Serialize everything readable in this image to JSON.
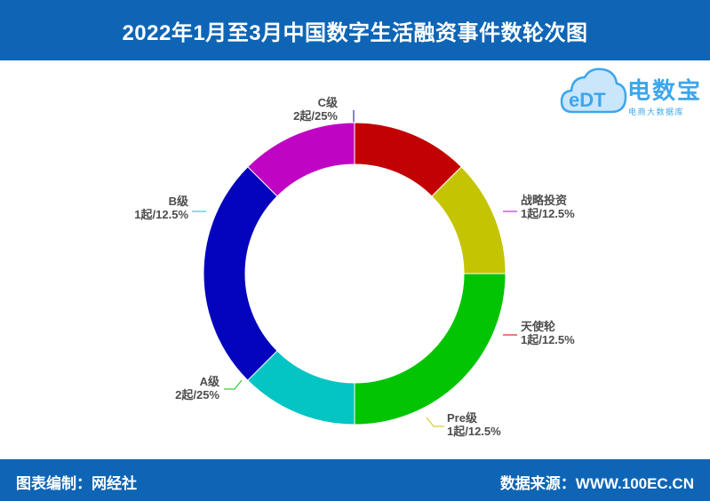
{
  "header": {
    "title": "2022年1月至3月中国数字生活融资事件数轮次图"
  },
  "footer": {
    "left": "图表编制：网经社",
    "right": "数据来源：WWW.100EC.CN"
  },
  "logo": {
    "mark": "eDT",
    "brand": "电数宝",
    "tagline": "电商大数据库",
    "color": "#3ca6ec"
  },
  "chart_data": {
    "type": "pie",
    "variant": "donut",
    "title": "2022年1月至3月中国数字生活融资事件数轮次图",
    "slices": [
      {
        "name": "C级",
        "value": 2,
        "label": "2起/25%",
        "color": "#0404be"
      },
      {
        "name": "战略投资",
        "value": 1,
        "label": "1起/12.5%",
        "color": "#c004c4"
      },
      {
        "name": "天使轮",
        "value": 1,
        "label": "1起/12.5%",
        "color": "#c20202"
      },
      {
        "name": "Pre级",
        "value": 1,
        "label": "1起/12.5%",
        "color": "#c4c402"
      },
      {
        "name": "A级",
        "value": 2,
        "label": "2起/25%",
        "color": "#02c402"
      },
      {
        "name": "B级",
        "value": 1,
        "label": "1起/12.5%",
        "color": "#04c4c4"
      }
    ]
  }
}
